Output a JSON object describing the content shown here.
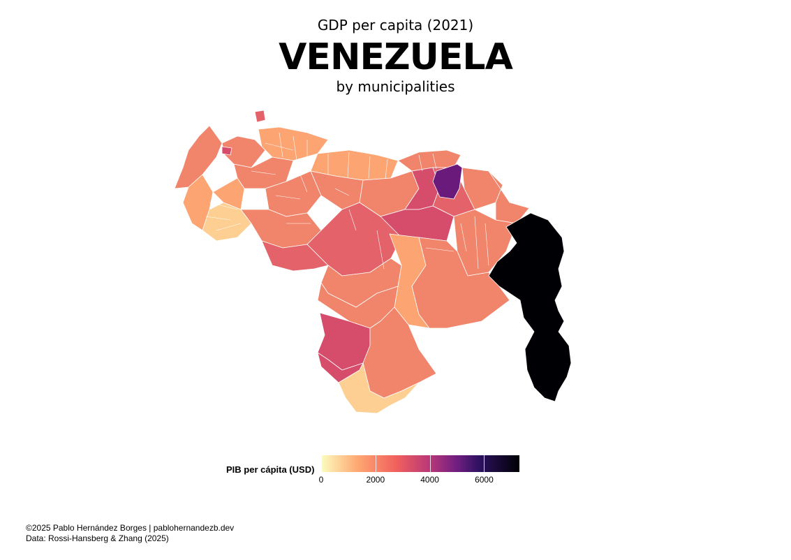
{
  "header": {
    "subtitle_top": "GDP per capita (2021)",
    "title": "VENEZUELA",
    "subtitle_bottom": "by municipalities"
  },
  "legend": {
    "title": "PIB per cápita (USD)",
    "ticks": [
      {
        "label": "0",
        "value": 0
      },
      {
        "label": "2000",
        "value": 2000
      },
      {
        "label": "4000",
        "value": 4000
      },
      {
        "label": "6000",
        "value": 6000
      }
    ],
    "min": 0,
    "max": 7300,
    "colors": [
      "#fcfdbf",
      "#fea973",
      "#f1605d",
      "#b73779",
      "#721f81",
      "#2c115f",
      "#000004"
    ]
  },
  "footer": {
    "credit": "©2025 Pablo Hernández Borges | pablohernandezb.dev",
    "source": "Data: Rossi-Hansberg & Zhang (2025)"
  },
  "map": {
    "colors": {
      "lightest": "#fdcf92",
      "light": "#fca572",
      "mid": "#f0856b",
      "midred": "#e4636a",
      "pink": "#d64c6b",
      "purple": "#6a1a7a",
      "black": "#000004"
    }
  }
}
